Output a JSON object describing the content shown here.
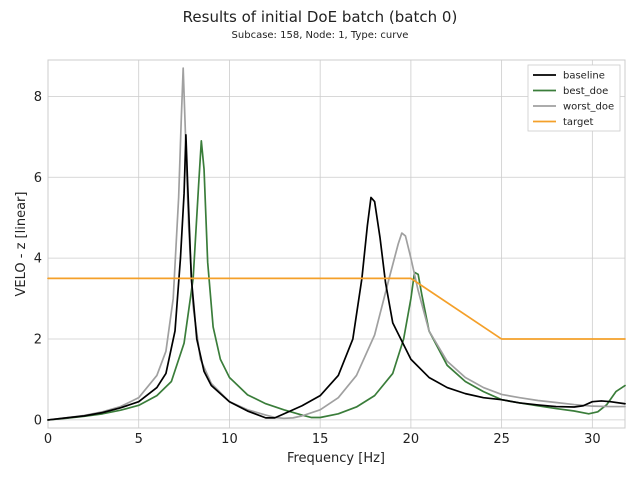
{
  "chart_data": {
    "type": "line",
    "title": "Results of initial DoE batch (batch 0)",
    "subtitle": "Subcase: 158, Node: 1, Type: curve",
    "xlabel": "Frequency [Hz]",
    "ylabel": "VELO - z [linear]",
    "xlim": [
      0,
      31.8
    ],
    "ylim": [
      -0.2,
      8.9
    ],
    "xticks": [
      0,
      5,
      10,
      15,
      20,
      25,
      30
    ],
    "yticks": [
      0,
      2,
      4,
      6,
      8
    ],
    "grid": true,
    "legend_position": "top-right",
    "series": [
      {
        "name": "baseline",
        "color": "#000000",
        "points": [
          [
            0,
            0
          ],
          [
            1,
            0.05
          ],
          [
            2,
            0.1
          ],
          [
            3,
            0.18
          ],
          [
            4,
            0.3
          ],
          [
            5,
            0.45
          ],
          [
            6,
            0.8
          ],
          [
            6.5,
            1.15
          ],
          [
            7,
            2.2
          ],
          [
            7.3,
            4.0
          ],
          [
            7.5,
            5.6
          ],
          [
            7.6,
            7.05
          ],
          [
            7.7,
            5.8
          ],
          [
            7.9,
            3.5
          ],
          [
            8.2,
            2.0
          ],
          [
            8.6,
            1.2
          ],
          [
            9,
            0.85
          ],
          [
            10,
            0.45
          ],
          [
            11,
            0.22
          ],
          [
            12,
            0.05
          ],
          [
            12.5,
            0.05
          ],
          [
            13,
            0.15
          ],
          [
            14,
            0.35
          ],
          [
            15,
            0.6
          ],
          [
            16,
            1.1
          ],
          [
            16.8,
            2.0
          ],
          [
            17.3,
            3.5
          ],
          [
            17.6,
            4.8
          ],
          [
            17.8,
            5.5
          ],
          [
            18,
            5.4
          ],
          [
            18.3,
            4.5
          ],
          [
            18.6,
            3.4
          ],
          [
            19,
            2.4
          ],
          [
            20,
            1.5
          ],
          [
            21,
            1.05
          ],
          [
            22,
            0.8
          ],
          [
            23,
            0.65
          ],
          [
            24,
            0.55
          ],
          [
            25,
            0.5
          ],
          [
            26,
            0.42
          ],
          [
            27,
            0.37
          ],
          [
            28,
            0.33
          ],
          [
            29,
            0.32
          ],
          [
            29.5,
            0.35
          ],
          [
            30,
            0.45
          ],
          [
            30.5,
            0.47
          ],
          [
            31,
            0.45
          ],
          [
            31.8,
            0.4
          ]
        ]
      },
      {
        "name": "best_doe",
        "color": "#3a7d3a",
        "points": [
          [
            0,
            0
          ],
          [
            1,
            0.04
          ],
          [
            2,
            0.09
          ],
          [
            3,
            0.15
          ],
          [
            4,
            0.24
          ],
          [
            5,
            0.36
          ],
          [
            6,
            0.6
          ],
          [
            6.8,
            0.95
          ],
          [
            7.5,
            1.9
          ],
          [
            8,
            3.5
          ],
          [
            8.3,
            5.8
          ],
          [
            8.45,
            6.9
          ],
          [
            8.6,
            6.2
          ],
          [
            8.8,
            3.9
          ],
          [
            9.1,
            2.3
          ],
          [
            9.5,
            1.5
          ],
          [
            10,
            1.05
          ],
          [
            11,
            0.62
          ],
          [
            12,
            0.4
          ],
          [
            13,
            0.25
          ],
          [
            14,
            0.12
          ],
          [
            14.5,
            0.06
          ],
          [
            15,
            0.06
          ],
          [
            16,
            0.15
          ],
          [
            17,
            0.32
          ],
          [
            18,
            0.6
          ],
          [
            19,
            1.15
          ],
          [
            19.6,
            2.0
          ],
          [
            20,
            3.0
          ],
          [
            20.2,
            3.65
          ],
          [
            20.4,
            3.6
          ],
          [
            20.6,
            3.1
          ],
          [
            21,
            2.2
          ],
          [
            22,
            1.35
          ],
          [
            23,
            0.95
          ],
          [
            24,
            0.7
          ],
          [
            25,
            0.5
          ],
          [
            26,
            0.42
          ],
          [
            27,
            0.35
          ],
          [
            28,
            0.28
          ],
          [
            29,
            0.22
          ],
          [
            29.8,
            0.15
          ],
          [
            30.3,
            0.2
          ],
          [
            30.8,
            0.38
          ],
          [
            31.3,
            0.7
          ],
          [
            31.8,
            0.85
          ]
        ]
      },
      {
        "name": "worst_doe",
        "color": "#a0a0a0",
        "points": [
          [
            0,
            0
          ],
          [
            1,
            0.05
          ],
          [
            2,
            0.11
          ],
          [
            3,
            0.2
          ],
          [
            4,
            0.33
          ],
          [
            5,
            0.55
          ],
          [
            6,
            1.1
          ],
          [
            6.5,
            1.7
          ],
          [
            6.9,
            3.0
          ],
          [
            7.2,
            5.5
          ],
          [
            7.35,
            7.5
          ],
          [
            7.45,
            8.7
          ],
          [
            7.55,
            7.4
          ],
          [
            7.75,
            4.8
          ],
          [
            8,
            2.8
          ],
          [
            8.4,
            1.5
          ],
          [
            9,
            0.9
          ],
          [
            10,
            0.45
          ],
          [
            11,
            0.25
          ],
          [
            12,
            0.12
          ],
          [
            12.5,
            0.06
          ],
          [
            13,
            0.04
          ],
          [
            13.5,
            0.05
          ],
          [
            14,
            0.1
          ],
          [
            15,
            0.25
          ],
          [
            16,
            0.55
          ],
          [
            17,
            1.1
          ],
          [
            18,
            2.1
          ],
          [
            18.8,
            3.5
          ],
          [
            19.3,
            4.35
          ],
          [
            19.5,
            4.62
          ],
          [
            19.7,
            4.55
          ],
          [
            20,
            4.0
          ],
          [
            20.4,
            3.2
          ],
          [
            21,
            2.2
          ],
          [
            22,
            1.45
          ],
          [
            23,
            1.05
          ],
          [
            24,
            0.8
          ],
          [
            25,
            0.63
          ],
          [
            26,
            0.55
          ],
          [
            27,
            0.48
          ],
          [
            28,
            0.43
          ],
          [
            29,
            0.38
          ],
          [
            30,
            0.34
          ],
          [
            31,
            0.33
          ],
          [
            31.8,
            0.33
          ]
        ]
      },
      {
        "name": "target",
        "color": "#f4a02a",
        "points": [
          [
            0,
            3.5
          ],
          [
            20,
            3.5
          ],
          [
            25,
            2.0
          ],
          [
            31.8,
            2.0
          ]
        ]
      }
    ]
  }
}
